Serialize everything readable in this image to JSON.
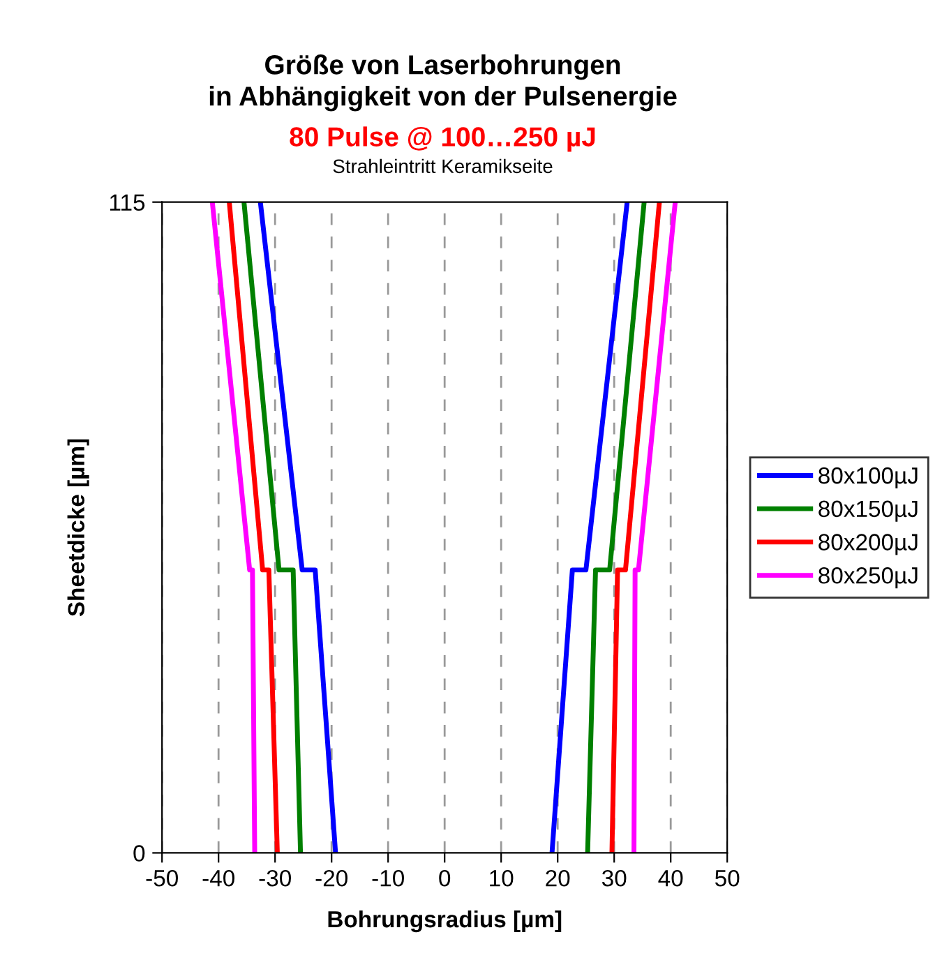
{
  "chart_data": {
    "type": "line",
    "title": "Größe von Laserbohrungen\nin Abhängigkeit von der Pulsenergie",
    "subtitle": "80 Pulse @ 100…250 µJ",
    "annotations": [
      "Strahleintritt Keramikseite"
    ],
    "xlabel": "Bohrungsradius [µm]",
    "ylabel": "Sheetdicke [µm]",
    "xlim": [
      -50,
      50
    ],
    "xticks": [
      -50,
      -40,
      -30,
      -20,
      -10,
      0,
      10,
      20,
      30,
      40,
      50
    ],
    "ylim": [
      0,
      115
    ],
    "yticks": [
      0,
      115
    ],
    "grid": "x",
    "legend": "right",
    "marker": "none",
    "line_style": "solid",
    "series": [
      {
        "name": "80x100µJ",
        "color": "#0000ff",
        "x": [
          -32.6,
          -25.2,
          -22.9,
          -19.3,
          null,
          19,
          22.6,
          25,
          32.3
        ],
        "values": [
          115,
          50,
          50,
          0,
          null,
          0,
          50,
          50,
          115
        ]
      },
      {
        "name": "80x150µJ",
        "color": "#008000",
        "x": [
          -35.5,
          -29.3,
          -26.8,
          -25.5,
          null,
          25.3,
          26.7,
          29.2,
          35.3
        ],
        "values": [
          115,
          50,
          50,
          0,
          null,
          0,
          50,
          50,
          115
        ]
      },
      {
        "name": "80x200µJ",
        "color": "#ff0000",
        "x": [
          -38.1,
          -32.2,
          -31.1,
          -29.6,
          null,
          29.6,
          30.6,
          32,
          38
        ],
        "values": [
          115,
          50,
          50,
          0,
          null,
          0,
          50,
          50,
          115
        ]
      },
      {
        "name": "80x250µJ",
        "color": "#ff00ff",
        "x": [
          -41.1,
          -34.5,
          -34,
          -33.6,
          null,
          33.5,
          33.7,
          34.3,
          40.8
        ],
        "values": [
          115,
          50,
          50,
          0,
          null,
          0,
          50,
          50,
          115
        ]
      }
    ]
  }
}
